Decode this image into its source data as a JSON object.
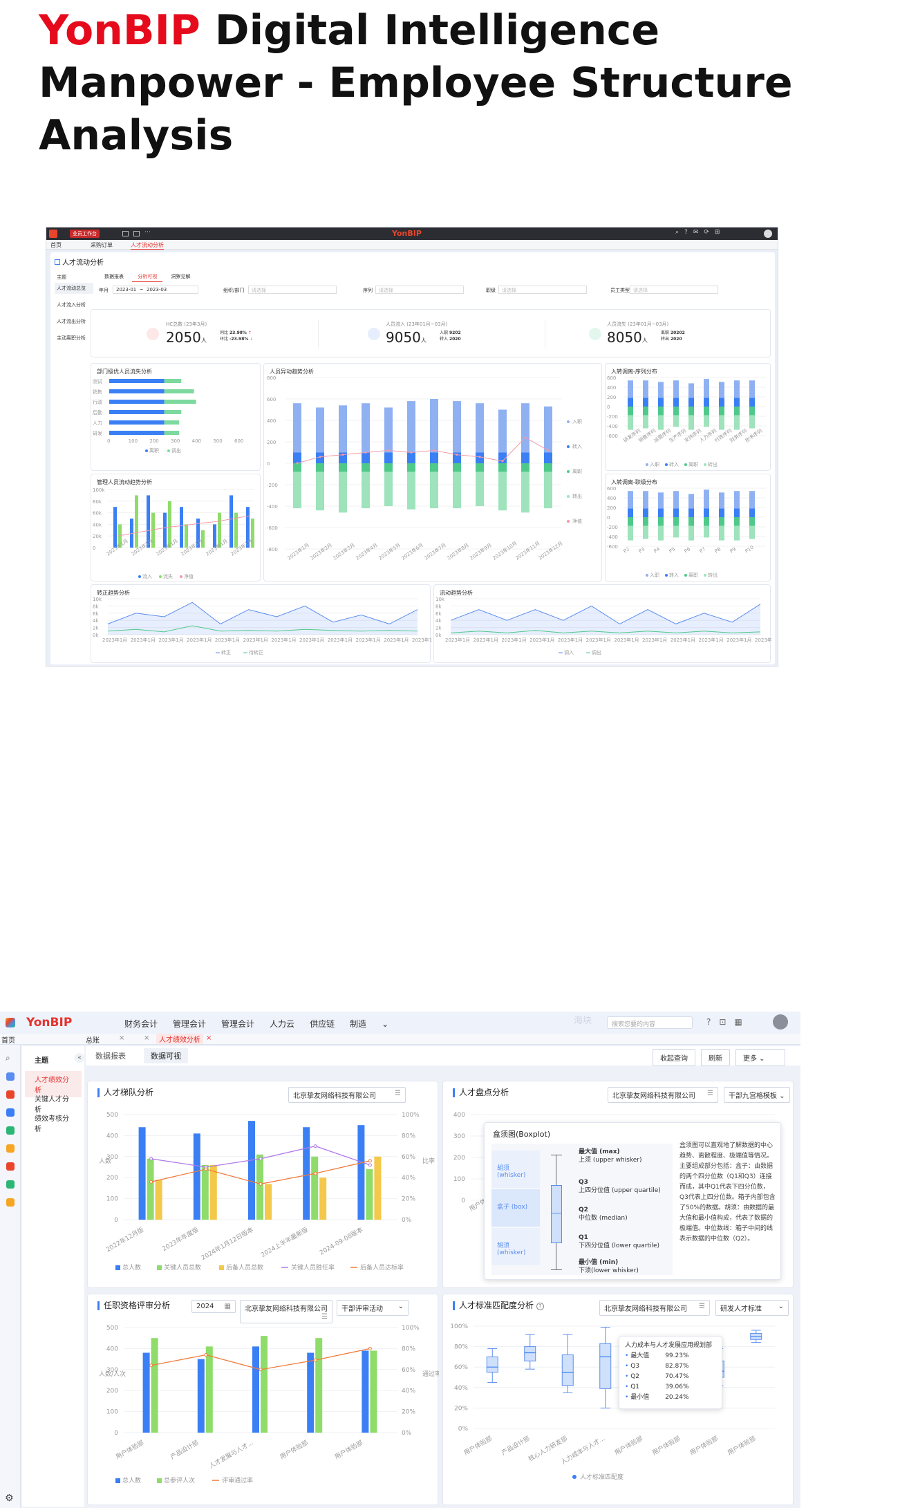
{
  "title": {
    "brand": "YonBIP",
    "rest": " Digital Intelligence Manpower - Employee Structure Analysis"
  },
  "s1": {
    "topbar": {
      "logo": "YonBIP",
      "workbench": "业员工作台"
    },
    "tabs": [
      "首页",
      "采购订单",
      "人才流动分析"
    ],
    "page_title": "人才流动分析",
    "side": [
      "主题",
      "人才流动总览",
      "人才流入分析",
      "人才流出分析",
      "主动离职分析"
    ],
    "subtabs": [
      "数据报表",
      "分析可视",
      "洞察见解"
    ],
    "filters": {
      "year_label": "年月",
      "from": "2023-01",
      "to": "2023-03",
      "org_label": "组织/部门",
      "org_ph": "请选择",
      "seq_label": "序列",
      "seq_ph": "请选择",
      "rank_label": "职级",
      "rank_ph": "请选择",
      "type_label": "员工类型",
      "type_ph": "请选择"
    },
    "kpis": [
      {
        "label": "HC总数 (23年3月)",
        "value": "2050",
        "unit": "人",
        "l1": "同比",
        "v1": "23.98%",
        "l2": "环比",
        "v2": "-23.98%"
      },
      {
        "label": "人员流入 (23年01月~03月)",
        "value": "9050",
        "unit": "人",
        "l1": "入职",
        "v1": "9202",
        "l2": "转入",
        "v2": "2020"
      },
      {
        "label": "人员流失 (23年01月~03月)",
        "value": "8050",
        "unit": "人",
        "l1": "离职",
        "v1": "20202",
        "l2": "转出",
        "v2": "2020"
      }
    ],
    "c_dept": {
      "title": "部门级优人员流失分析",
      "cats": [
        "测试",
        "销售",
        "行政",
        "后勤",
        "人力",
        "研发"
      ],
      "ticks": [
        "0",
        "100",
        "200",
        "300",
        "400",
        "500",
        "600"
      ],
      "legend": [
        "离职",
        "调出"
      ],
      "a": [
        260,
        260,
        260,
        260,
        260,
        260
      ],
      "b": [
        80,
        140,
        150,
        80,
        70,
        70
      ]
    },
    "c_mgr": {
      "title": "管理人员流动趋势分析",
      "yticks": [
        "100k",
        "80k",
        "60k",
        "40k",
        "20k",
        "0"
      ],
      "legend": [
        "流入",
        "流失",
        "净值"
      ],
      "cats": [
        "2023年1月",
        "2023年1月",
        "2023年1月",
        "2023年1月",
        "2023年1月",
        "2023年1月"
      ]
    },
    "c_main": {
      "title": "人员异动趋势分析",
      "yticks": [
        "800",
        "600",
        "400",
        "200",
        "0",
        "-200",
        "-400",
        "-600",
        "-800"
      ],
      "legend": [
        "入职",
        "转入",
        "离职",
        "转出",
        "净值"
      ],
      "cats": [
        "2023年1月",
        "2023年2月",
        "2023年3月",
        "2023年4月",
        "2023年5月",
        "2023年6月",
        "2023年7月",
        "2023年8月",
        "2023年9月",
        "2023年10月",
        "2023年11月",
        "2023年12月"
      ],
      "in1": [
        560,
        520,
        540,
        560,
        520,
        580,
        600,
        580,
        560,
        500,
        560,
        530
      ],
      "in2": [
        100,
        100,
        100,
        100,
        100,
        100,
        100,
        100,
        100,
        100,
        100,
        100
      ],
      "out1": [
        -420,
        -440,
        -460,
        -420,
        -400,
        -430,
        -420,
        -420,
        -400,
        -440,
        -460,
        -420
      ],
      "out2": [
        -80,
        -80,
        -80,
        -80,
        -80,
        -80,
        -80,
        -80,
        -80,
        -80,
        -80,
        -80
      ],
      "net": [
        0,
        60,
        80,
        100,
        120,
        100,
        120,
        80,
        60,
        20,
        240,
        120
      ]
    },
    "c_seq": {
      "title": "入转调离-序列分布",
      "yticks": [
        "600",
        "400",
        "200",
        "0",
        "-200",
        "-400",
        "-600"
      ],
      "legend": [
        "入职",
        "转入",
        "离职",
        "转出"
      ],
      "cats": [
        "研发序列",
        "销售序列",
        "运营序列",
        "生产序列",
        "支持序列",
        "人力序列",
        "行政序列",
        "财务序列",
        "技术序列"
      ]
    },
    "c_rank": {
      "title": "入转调离-职级分布",
      "yticks": [
        "600",
        "400",
        "200",
        "0",
        "-200",
        "-400",
        "-600"
      ],
      "legend": [
        "入职",
        "转入",
        "离职",
        "转出"
      ],
      "cats": [
        "P2",
        "P3",
        "P4",
        "P5",
        "P6",
        "P7",
        "P8",
        "P9",
        "P10"
      ]
    },
    "c_reg": {
      "title": "转正趋势分析",
      "yticks": [
        "10k",
        "8k",
        "6k",
        "4k",
        "2k",
        "0k"
      ],
      "legend": [
        "转正",
        "待转正"
      ],
      "cats": [
        "2023年1月",
        "2023年1月",
        "2023年1月",
        "2023年1月",
        "2023年1月",
        "2023年1月",
        "2023年1月",
        "2023年1月",
        "2023年1月",
        "2023年1月",
        "2023年1月",
        "2023年1月"
      ]
    },
    "c_flow": {
      "title": "流动趋势分析",
      "yticks": [
        "10k",
        "8k",
        "6k",
        "4k",
        "2k",
        "0k"
      ],
      "legend": [
        "调入",
        "调出"
      ],
      "cats": [
        "2023年1月",
        "2023年1月",
        "2023年1月",
        "2023年1月",
        "2023年1月",
        "2023年1月",
        "2023年1月",
        "2023年1月",
        "2023年1月",
        "2023年1月",
        "2023年1月",
        "2023年1月"
      ]
    }
  },
  "s2": {
    "logo": "YonBIP",
    "nav": [
      "财务会计",
      "管理会计",
      "管理会计",
      "人力云",
      "供应链",
      "制造"
    ],
    "search_ph": "搜索您要的内容",
    "brand_faint": "海块",
    "tabs": [
      "首页",
      "总账",
      "人才绩效分析"
    ],
    "side_title": "主题",
    "side": [
      "人才绩效分析",
      "关键人才分析",
      "绩效考核分析"
    ],
    "subtabs": [
      "数据报表",
      "数据可视"
    ],
    "buttons": [
      "收起查询",
      "刷新",
      "更多"
    ],
    "c1": {
      "title": "人才梯队分析",
      "org": "北京挚友网络科技有限公司",
      "ylabel": "人数",
      "y2label": "比率",
      "yticks": [
        "500",
        "400",
        "300",
        "200",
        "100",
        "0"
      ],
      "y2ticks": [
        "100%",
        "80%",
        "60%",
        "40%",
        "20%",
        "0%"
      ],
      "cats": [
        "2022年12月版",
        "2023年年度版",
        "2024年1月12日版本",
        "2024上半年最新版",
        "2024-09-08版本"
      ],
      "series": [
        {
          "name": "总人数",
          "values": [
            440,
            410,
            470,
            440,
            450
          ]
        },
        {
          "name": "关键人员总数",
          "values": [
            290,
            260,
            310,
            300,
            240
          ]
        },
        {
          "name": "后备人员总数",
          "values": [
            190,
            260,
            170,
            200,
            300
          ]
        }
      ],
      "lines": [
        {
          "name": "关键人员胜任率",
          "values": [
            0.58,
            0.5,
            0.58,
            0.7,
            0.52
          ]
        },
        {
          "name": "后备人员达标率",
          "values": [
            0.36,
            0.48,
            0.34,
            0.44,
            0.56
          ]
        }
      ]
    },
    "c2": {
      "title": "人才盘点分析",
      "org": "北京挚友网络科技有限公司",
      "tpl": "干部九宫格模板",
      "yticks": [
        "400",
        "300",
        "200",
        "100",
        "0"
      ],
      "xcat": "用户体"
    },
    "boxplot_tip": {
      "heading": "盒须图(Boxplot)",
      "whisker1": "胡须 (whisker)",
      "box": "盒子 (box)",
      "whisker2": "胡须 (whisker)",
      "items": [
        [
          "最大值 (max)",
          "上须 (upper whisker)"
        ],
        [
          "Q3",
          "上四分位值 (upper quartile)"
        ],
        [
          "Q2",
          "中位数 (median)"
        ],
        [
          "Q1",
          "下四分位值 (lower quartile)"
        ],
        [
          "最小值 (min)",
          "下须(lower whisker)"
        ]
      ],
      "desc": "盒须图可以直观地了解数据的中心趋势、离散程度、极端值等情况。主要组成部分包括：盒子：由数据的两个四分位数（Q1和Q3）连接而成，其中Q1代表下四分位数，Q3代表上四分位数。箱子内部包含了50%的数据。胡须：由数据的最大值和最小值构成，代表了数据的极端值。中位数线：箱子中间的线表示数据的中位数（Q2）。"
    },
    "c3": {
      "title": "任职资格评审分析",
      "year": "2024",
      "org": "北京挚友网络科技有限公司",
      "act": "干部评审活动",
      "ylabel": "人数/人次",
      "y2label": "通过率",
      "yticks": [
        "500",
        "400",
        "300",
        "200",
        "100",
        "0"
      ],
      "y2ticks": [
        "100%",
        "80%",
        "60%",
        "40%",
        "20%",
        "0%"
      ],
      "cats": [
        "用户体验部",
        "产品设计部",
        "人才发展与人才...",
        "用户体验部",
        "用户体验部"
      ],
      "series": [
        {
          "name": "总人数",
          "values": [
            380,
            350,
            410,
            380,
            390
          ]
        },
        {
          "name": "总参评人次",
          "values": [
            450,
            410,
            460,
            450,
            390
          ]
        }
      ],
      "lines": [
        {
          "name": "评审通过率",
          "values": [
            0.64,
            0.74,
            0.6,
            0.69,
            0.8
          ]
        }
      ]
    },
    "c4": {
      "title": "人才标准匹配度分析",
      "org": "北京挚友网络科技有限公司",
      "std": "研发人才标准",
      "yticks": [
        "100%",
        "80%",
        "60%",
        "40%",
        "20%",
        "0%"
      ],
      "cats": [
        "用户体验部",
        "产品设计部",
        "核心人力研发部",
        "人力成本与人才...",
        "用户体验部",
        "用户体验部",
        "用户体验部",
        "用户体验部"
      ],
      "boxes": [
        [
          0.45,
          0.55,
          0.6,
          0.7,
          0.78
        ],
        [
          0.58,
          0.66,
          0.74,
          0.8,
          0.92
        ],
        [
          0.35,
          0.42,
          0.55,
          0.72,
          0.92
        ],
        [
          0.2,
          0.39,
          0.7,
          0.83,
          0.99
        ],
        [
          0.5,
          0.56,
          0.62,
          0.68,
          0.78
        ],
        [
          0.4,
          0.48,
          0.55,
          0.62,
          0.7
        ],
        [
          0.42,
          0.5,
          0.56,
          0.66,
          0.78
        ],
        [
          0.84,
          0.87,
          0.9,
          0.93,
          0.96
        ]
      ],
      "legend": "人才标准匹配度",
      "tip": {
        "heading": "人力成本与人才发展应用规划部",
        "rows": [
          [
            "最大值",
            "99.23%"
          ],
          [
            "Q3",
            "82.87%"
          ],
          [
            "Q2",
            "70.47%"
          ],
          [
            "Q1",
            "39.06%"
          ],
          [
            "最小值",
            "20.24%"
          ]
        ]
      }
    }
  }
}
